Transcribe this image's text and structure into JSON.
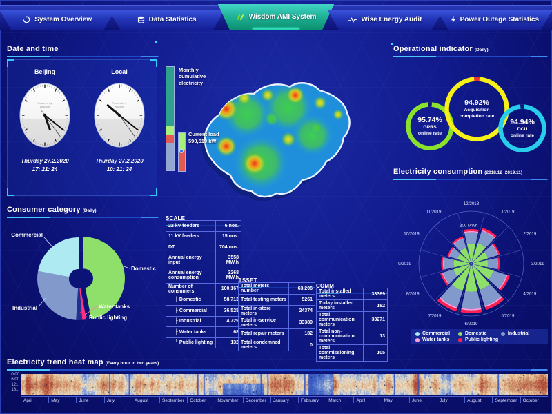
{
  "app": {
    "accent": "#35c8ff",
    "active_tab_color": "#17b895",
    "background": "#0d1583"
  },
  "nav": {
    "tabs": [
      {
        "label": "System Overview",
        "icon": "system-overview-icon",
        "active": false
      },
      {
        "label": "Data Statistics",
        "icon": "data-statistics-icon",
        "active": false
      },
      {
        "label": "Wisdom AMI System",
        "icon": "wisdom-logo-icon",
        "active": true
      },
      {
        "label": "Wise Energy Audit",
        "icon": "energy-audit-icon",
        "active": false
      },
      {
        "label": "Power Outage Statistics",
        "icon": "power-outage-icon",
        "active": false
      }
    ]
  },
  "datetime_panel": {
    "title": "Date and time",
    "clocks": [
      {
        "city": "Beijing",
        "brand_line1": "Powered by",
        "brand_line2": "Wisdom",
        "date": "Thurday 27.2.2020",
        "time": "17: 21: 24"
      },
      {
        "city": "Local",
        "brand_line1": "Powered by",
        "brand_line2": "Wisdom",
        "date": "Thurday 27.2.2020",
        "time": "10: 21: 24"
      }
    ]
  },
  "consumer_panel": {
    "title": "Consumer category",
    "subtitle": "(Daily)"
  },
  "map_panel": {
    "monthly_bar_label": "Monthly cumulative electricity",
    "current_load_label": "Current load",
    "current_load_value": "590,519 kW",
    "monthly_bar_segments": [
      {
        "name": "teal",
        "color": "#2f9f8e",
        "pct": 57
      },
      {
        "name": "light-green",
        "color": "#a8ef7c",
        "pct": 8
      },
      {
        "name": "red",
        "color": "#e25a52",
        "pct": 8
      },
      {
        "name": "slate",
        "color": "#93a7d0",
        "pct": 27
      }
    ],
    "current_bar_segments": [
      {
        "name": "light-green",
        "color": "#a8ef7c",
        "pct": 45
      },
      {
        "name": "red",
        "color": "#e25a52",
        "pct": 55
      }
    ]
  },
  "scale_table": {
    "title": "SCALE",
    "rows": [
      {
        "label": "22 kV feeders",
        "value": "6 nos.",
        "indent": 0,
        "tall": false
      },
      {
        "label": "11 kV feeders",
        "value": "15 nos.",
        "indent": 0,
        "tall": false
      },
      {
        "label": "DT",
        "value": "704 nos.",
        "indent": 0,
        "tall": false
      },
      {
        "label": "Annual energy input",
        "value": "3558 MW.h",
        "indent": 0,
        "tall": true
      },
      {
        "label": "Annual energy consumption",
        "value": "3268 MW.h",
        "indent": 0,
        "tall": true
      },
      {
        "label": "Number of consumers",
        "value": "100,167",
        "indent": 0,
        "tall": false
      },
      {
        "label": "Domestic",
        "value": "58,713",
        "indent": 1,
        "tall": false
      },
      {
        "label": "Commercial",
        "value": "36,525",
        "indent": 1,
        "tall": false
      },
      {
        "label": "Industrial",
        "value": "4,729",
        "indent": 1,
        "tall": false
      },
      {
        "label": "Water tanks",
        "value": "68",
        "indent": 1,
        "tall": false
      },
      {
        "label": "Public lighting",
        "value": "132",
        "indent": 2,
        "tall": false
      }
    ]
  },
  "asset_table": {
    "title": "ASSET",
    "rows": [
      {
        "label": "Total meters number",
        "value": "63,206",
        "indent": 0,
        "tall": false
      },
      {
        "label": "Total testing meters",
        "value": "5261",
        "indent": 0,
        "tall": false
      },
      {
        "label": "Total in-store meters",
        "value": "24374",
        "indent": 0,
        "tall": false
      },
      {
        "label": "Total in-service meters",
        "value": "33389",
        "indent": 0,
        "tall": false
      },
      {
        "label": "Total repair meters",
        "value": "182",
        "indent": 0,
        "tall": false
      },
      {
        "label": "Total condemned meters",
        "value": "0",
        "indent": 0,
        "tall": false
      }
    ]
  },
  "comm_table": {
    "title": "COMM",
    "rows": [
      {
        "label": "Total installed meters",
        "value": "33389",
        "indent": 0,
        "tall": false
      },
      {
        "label": "Today installed meters",
        "value": "182",
        "indent": 0,
        "tall": false
      },
      {
        "label": "Total communication meters",
        "value": "33271",
        "indent": 0,
        "tall": false
      },
      {
        "label": "Total non-communication meters",
        "value": "13",
        "indent": 0,
        "tall": true
      },
      {
        "label": "Total commissioning meters",
        "value": "105",
        "indent": 0,
        "tall": false
      }
    ]
  },
  "operational_panel": {
    "title": "Operational indicator",
    "subtitle": "(Daily)"
  },
  "consumption_panel": {
    "title": "Electricity consumption",
    "subtitle": "(2018.12~2019.11)"
  },
  "heatmap_panel": {
    "title": "Electricity trend heat map",
    "subtitle": "(Every hour in two years)"
  },
  "chart_data": [
    {
      "type": "pie",
      "title": "Consumer category (Daily)",
      "donut_hole": 14,
      "slices": [
        {
          "label": "Domestic",
          "value": 47,
          "color": "#8fe06a",
          "explode": 7,
          "label_line": [
            [
              165,
              73
            ],
            [
              176,
              77
            ]
          ],
          "label_pos": [
            178,
            80
          ],
          "anchor": "start",
          "line_color": "#cfe0ff"
        },
        {
          "label": "Water tanks",
          "value": 1.6,
          "color": "#ff2e86",
          "label_line": [
            [
              111,
              144
            ],
            [
              129,
              132
            ]
          ],
          "label_pos": [
            131,
            135
          ],
          "anchor": "start",
          "line_color": "#ff7eb8"
        },
        {
          "label": "Public lighting",
          "value": 2.4,
          "color": "#20308f",
          "label_line": [
            [
              104,
              140
            ],
            [
              115,
              148
            ]
          ],
          "label_pos": [
            117,
            151
          ],
          "anchor": "start",
          "line_color": "#ff2e5e"
        },
        {
          "label": "Industrial",
          "value": 27,
          "color": "#8299cc",
          "label_line": [
            [
              54,
              120
            ],
            [
              44,
              132
            ]
          ],
          "label_pos": [
            42,
            137
          ],
          "anchor": "end",
          "line_color": "#cfe0ff"
        },
        {
          "label": "Commercial",
          "value": 22,
          "color": "#aeeaf2",
          "label_line": [
            [
              66,
              48
            ],
            [
              52,
              32
            ]
          ],
          "label_pos": [
            50,
            31
          ],
          "anchor": "end",
          "line_color": "#cfe0ff"
        }
      ]
    },
    {
      "type": "bar",
      "subtype": "polar-stacked-rose",
      "title": "Electricity consumption (2018.12~2019.11)",
      "categories": [
        "12/2018",
        "1/2019",
        "2/2019",
        "3/2019",
        "4/2019",
        "5/2019",
        "6/2019",
        "7/2019",
        "8/2019",
        "9/2019",
        "10/2019",
        "11/2019"
      ],
      "unit": "MWh",
      "radial_max": 250,
      "ring_label": "200 MWh",
      "ring_label_value": 200,
      "series": [
        {
          "name": "Commercial",
          "color": "#aeeaf2",
          "values": [
            3,
            4,
            3,
            3,
            4,
            5,
            5,
            5,
            3,
            3,
            2,
            3
          ]
        },
        {
          "name": "Domestic",
          "color": "#8fe06a",
          "values": [
            85,
            93,
            74,
            69,
            101,
            122,
            125,
            127,
            80,
            74,
            61,
            69
          ]
        },
        {
          "name": "Industrial",
          "color": "#8299cc",
          "values": [
            58,
            63,
            50,
            47,
            68,
            83,
            85,
            86,
            54,
            50,
            41,
            47
          ]
        },
        {
          "name": "Water tanks",
          "color": "#ff9ed6",
          "values": [
            5,
            5,
            4,
            4,
            6,
            7,
            7,
            7,
            5,
            4,
            3,
            4
          ]
        },
        {
          "name": "Public lighting",
          "color": "#ff2050",
          "values": [
            10,
            11,
            8,
            8,
            11,
            14,
            14,
            14,
            9,
            8,
            7,
            8
          ]
        }
      ],
      "legend": [
        {
          "label": "Commercial",
          "color": "#aeeaf2"
        },
        {
          "label": "Domestic",
          "color": "#8fe06a"
        },
        {
          "label": "Industrial",
          "color": "#8299cc"
        },
        {
          "label": "Water tanks",
          "color": "#ff9ed6"
        },
        {
          "label": "Public lighting",
          "color": "#ff2050"
        }
      ]
    },
    {
      "type": "pie",
      "subtype": "gauge-rings",
      "title": "Operational indicator (Daily)",
      "gauges": [
        {
          "value": "95.74%",
          "label_lines": [
            "GPRS",
            "online rate"
          ],
          "color": "#8ae22c",
          "notch_color": "#0d1578",
          "pct": 95.74
        },
        {
          "value": "94.92%",
          "label_lines": [
            "Acquisition",
            "completion rate"
          ],
          "color": "#f6ef18",
          "notch_color": "#e83030",
          "pct": 94.92
        },
        {
          "value": "94.94%",
          "label_lines": [
            "DCU",
            "online rate"
          ],
          "color": "#27cdea",
          "notch_color": "#0d1578",
          "pct": 94.94
        }
      ]
    },
    {
      "type": "heatmap",
      "title": "Electricity trend heat map (Every hour in two years)",
      "x_months": [
        "April",
        "May",
        "June",
        "July",
        "August",
        "September",
        "October",
        "November",
        "December",
        "January",
        "February",
        "March",
        "April",
        "May",
        "June",
        "July",
        "August",
        "September",
        "October"
      ],
      "y_hours": [
        "0:00",
        "6:00",
        "12:..",
        "18:.."
      ],
      "palette": {
        "hot": "#b24634",
        "warm": "#e2ba8c",
        "base": "#f2e6cc",
        "cool": "#7896d6",
        "cold": "#2c50be"
      }
    }
  ]
}
